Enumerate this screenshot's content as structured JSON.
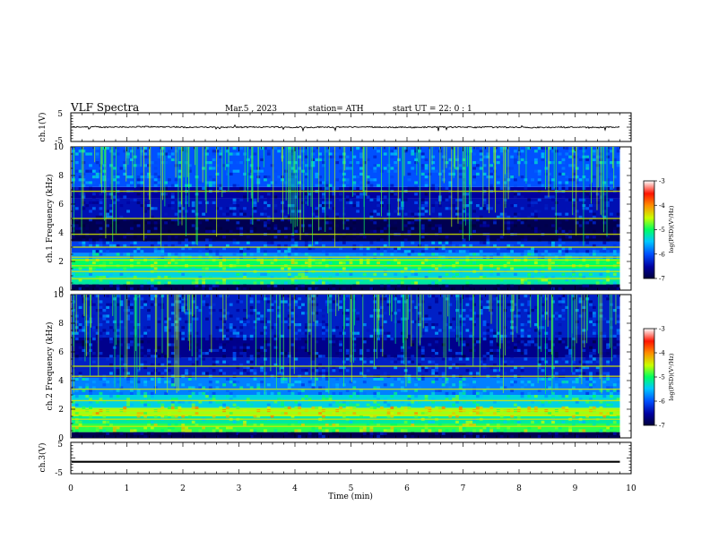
{
  "header": {
    "title": "VLF  Spectra",
    "date": "Mar.5  , 2023",
    "station": "station= ATH",
    "start_ut": "start  UT  =    22: 0   : 1"
  },
  "chart_data": {
    "type": "heatmap",
    "time_axis": {
      "label": "Time  (min)",
      "range": [
        0,
        10
      ],
      "ticks": [
        "0",
        "1",
        "2",
        "3",
        "4",
        "5",
        "6",
        "7",
        "8",
        "9",
        "10"
      ]
    },
    "recording_end_min": 9.8,
    "panels": [
      {
        "name": "ch.1 waveform",
        "type": "line",
        "ylabel": "ch.1(V)",
        "ylim": [
          -5,
          5
        ],
        "yticks": [
          "5",
          "-5"
        ],
        "series": {
          "mean": 0.0,
          "variance_band": [
            -1.2,
            0.7
          ],
          "color": "#000000"
        }
      },
      {
        "name": "ch.1 spectrogram",
        "type": "heatmap",
        "ylabel": "ch.1 Frequency (kHz)",
        "ylim": [
          0,
          10
        ],
        "yticks": [
          "0",
          "2",
          "4",
          "6",
          "8",
          "10"
        ],
        "colorbar": {
          "label": "log(PSD)(V²/Hz)",
          "range": [
            -7,
            -3
          ],
          "ticks": [
            "-3",
            "-4",
            "-5",
            "-6",
            "-7"
          ]
        },
        "bands": [
          {
            "f": [
              0.0,
              0.4
            ],
            "level": -6.9
          },
          {
            "f": [
              0.4,
              0.9
            ],
            "level": -5.2
          },
          {
            "f": [
              0.9,
              1.5
            ],
            "level": -5.4
          },
          {
            "f": [
              1.5,
              2.2
            ],
            "level": -5.0
          },
          {
            "f": [
              2.2,
              2.6
            ],
            "level": -5.7
          },
          {
            "f": [
              2.6,
              3.4
            ],
            "level": -6.1
          },
          {
            "f": [
              3.4,
              5.0
            ],
            "level": -6.9
          },
          {
            "f": [
              5.0,
              6.4
            ],
            "level": -6.4
          },
          {
            "f": [
              6.4,
              7.2
            ],
            "level": -6.5
          },
          {
            "f": [
              7.2,
              10.0
            ],
            "level": -6.0
          }
        ],
        "lines_khz": [
          0.8,
          1.3,
          1.7,
          2.1,
          2.3,
          3.0,
          3.9,
          5.0,
          6.9
        ],
        "sferics": "broadband vertical impulses throughout recording"
      },
      {
        "name": "ch.2 spectrogram",
        "type": "heatmap",
        "ylabel": "ch.2 Frequency (kHz)",
        "ylim": [
          0,
          10
        ],
        "yticks": [
          "0",
          "2",
          "4",
          "6",
          "8",
          "10"
        ],
        "colorbar": {
          "label": "log(PSD)(V²/Hz)",
          "range": [
            -7,
            -3
          ],
          "ticks": [
            "-3",
            "-4",
            "-5",
            "-6",
            "-7"
          ]
        },
        "bands": [
          {
            "f": [
              0.0,
              0.4
            ],
            "level": -6.9
          },
          {
            "f": [
              0.4,
              1.0
            ],
            "level": -4.9
          },
          {
            "f": [
              1.0,
              1.5
            ],
            "level": -5.2
          },
          {
            "f": [
              1.5,
              2.1
            ],
            "level": -4.6
          },
          {
            "f": [
              2.1,
              3.0
            ],
            "level": -5.4
          },
          {
            "f": [
              3.0,
              4.2
            ],
            "level": -5.8
          },
          {
            "f": [
              4.2,
              5.6
            ],
            "level": -6.3
          },
          {
            "f": [
              5.6,
              7.0
            ],
            "level": -6.6
          },
          {
            "f": [
              7.0,
              10.0
            ],
            "level": -6.3
          }
        ],
        "lines_khz": [
          0.8,
          1.3,
          1.6,
          1.9,
          2.6,
          3.4,
          4.3,
          5.0
        ],
        "sferics": "broadband vertical impulses throughout recording"
      },
      {
        "name": "ch.3 waveform",
        "type": "line",
        "ylabel": "ch.3(V)",
        "ylim": [
          -5,
          5
        ],
        "yticks": [
          "5",
          "-5"
        ],
        "series": {
          "mean": -1.2,
          "band": [
            -1.5,
            -0.9
          ],
          "color": "#000000"
        }
      }
    ]
  }
}
